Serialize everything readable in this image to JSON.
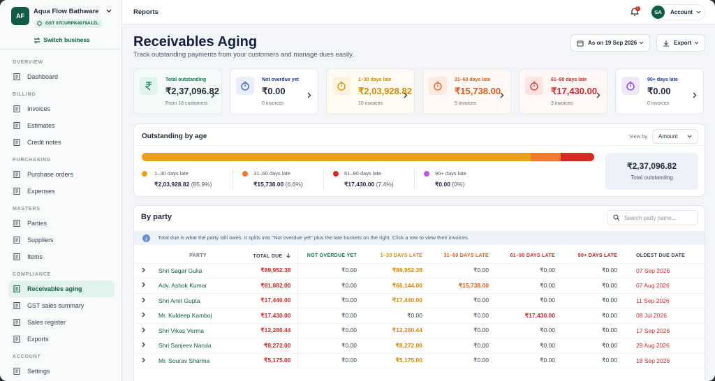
{
  "sidebar": {
    "business": {
      "initials": "AF",
      "name": "Aqua Flow Bathware",
      "gst": "GST 07CURPK4079A1ZL"
    },
    "switch": "Switch business",
    "sections": [
      {
        "title": "OVERVIEW",
        "items": [
          "Dashboard"
        ]
      },
      {
        "title": "BILLING",
        "items": [
          "Invoices",
          "Estimates",
          "Credit notes"
        ]
      },
      {
        "title": "PURCHASING",
        "items": [
          "Purchase orders",
          "Expenses"
        ]
      },
      {
        "title": "MASTERS",
        "items": [
          "Parties",
          "Suppliers",
          "Items"
        ]
      },
      {
        "title": "COMPLIANCE",
        "items": [
          "Receivables aging",
          "GST sales summary",
          "Sales register",
          "Exports"
        ]
      },
      {
        "title": "ACCOUNT",
        "items": [
          "Settings"
        ]
      }
    ],
    "active": "Receivables aging"
  },
  "topbar": {
    "breadcrumb": "Reports",
    "notifications": "1",
    "avatar": "SA",
    "account": "Account"
  },
  "header": {
    "title": "Receivables Aging",
    "subtitle": "Track outstanding payments from your customers and manage dues easily.",
    "date_button": "As on 19 Sep 2026",
    "export_button": "Export"
  },
  "cards": [
    {
      "label": "Total outstanding",
      "amount": "₹2,37,096.82",
      "sub": "From 18 customers"
    },
    {
      "label": "Not overdue yet",
      "amount": "₹0.00",
      "sub": "0 invoices"
    },
    {
      "label": "1–30 days late",
      "amount": "₹2,03,928.82",
      "sub": "10 invoices"
    },
    {
      "label": "31–60 days late",
      "amount": "₹15,738.00",
      "sub": "5 invoices"
    },
    {
      "label": "61–90 days late",
      "amount": "₹17,430.00",
      "sub": "3 invoices"
    },
    {
      "label": "90+ days late",
      "amount": "₹0.00",
      "sub": "0 invoices"
    }
  ],
  "age": {
    "title": "Outstanding by age",
    "view_by": "View by",
    "view_select": "Amount",
    "legend": [
      {
        "label": "1–30 days late",
        "amount": "₹2,03,928.82",
        "percent": 85.9,
        "percent_label": "(85.9%)"
      },
      {
        "label": "31–60 days late",
        "amount": "₹15,738.00",
        "percent": 6.6,
        "percent_label": "(6.6%)"
      },
      {
        "label": "61–90 days late",
        "amount": "₹17,430.00",
        "percent": 7.4,
        "percent_label": "(7.4%)"
      },
      {
        "label": "90+ days late",
        "amount": "₹0.00",
        "percent": 0,
        "percent_label": "(0%)"
      }
    ],
    "total": "₹2,37,096.82",
    "total_label": "Total outstanding"
  },
  "party": {
    "title": "By party",
    "search_placeholder": "Search party name...",
    "info": "Total due is what the party still owes. It splits into \"Not overdue yet\" plus the late buckets on the right. Click a row to view their invoices.",
    "columns": [
      "PARTY",
      "TOTAL DUE",
      "NOT OVERDUE YET",
      "1–30 DAYS LATE",
      "31–60 DAYS LATE",
      "61–90 DAYS LATE",
      "90+ DAYS LATE",
      "OLDEST DUE DATE"
    ],
    "rows": [
      [
        "Shri Sagar Gulia",
        "₹89,952.38",
        "₹0.00",
        "₹89,952.38",
        "₹0.00",
        "₹0.00",
        "₹0.00",
        "07 Sep 2026"
      ],
      [
        "Adv. Ashok Kumar",
        "₹81,882.00",
        "₹0.00",
        "₹66,144.00",
        "₹15,738.00",
        "₹0.00",
        "₹0.00",
        "07 Aug 2026"
      ],
      [
        "Shri Amit Gupta",
        "₹17,440.00",
        "₹0.00",
        "₹17,440.00",
        "₹0.00",
        "₹0.00",
        "₹0.00",
        "11 Sep 2026"
      ],
      [
        "Mr. Kuldeep Kamboj",
        "₹17,430.00",
        "₹0.00",
        "₹0.00",
        "₹0.00",
        "₹17,430.00",
        "₹0.00",
        "08 Jul 2026"
      ],
      [
        "Shri Vikas Verma",
        "₹12,280.44",
        "₹0.00",
        "₹12,280.44",
        "₹0.00",
        "₹0.00",
        "₹0.00",
        "17 Sep 2026"
      ],
      [
        "Shri Sanjeev Narula",
        "₹8,272.00",
        "₹0.00",
        "₹8,272.00",
        "₹0.00",
        "₹0.00",
        "₹0.00",
        "29 Aug 2026"
      ],
      [
        "Mr. Sourav Sharma",
        "₹5,175.00",
        "₹0.00",
        "₹5,175.00",
        "₹0.00",
        "₹0.00",
        "₹0.00",
        "18 Sep 2026"
      ]
    ]
  }
}
